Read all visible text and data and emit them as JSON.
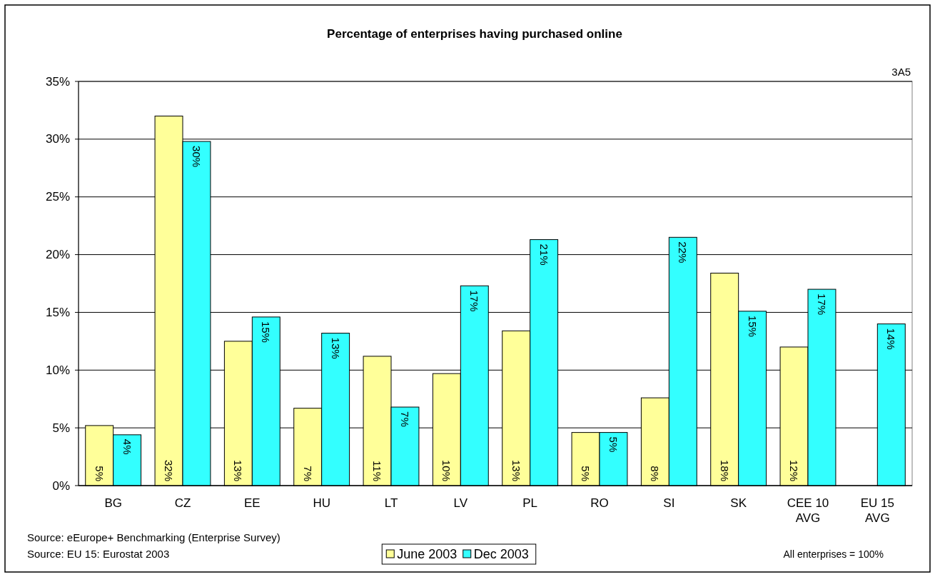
{
  "chart_data": {
    "type": "bar",
    "title": "Percentage of enterprises having purchased online",
    "categories": [
      "BG",
      "CZ",
      "EE",
      "HU",
      "LT",
      "LV",
      "PL",
      "RO",
      "SI",
      "SK",
      "CEE 10 AVG",
      "EU 15 AVG"
    ],
    "series": [
      {
        "name": "June 2003",
        "color": "#ffff99",
        "values": [
          5.2,
          32.0,
          12.5,
          6.7,
          11.2,
          9.7,
          13.4,
          4.6,
          7.6,
          18.4,
          12.0,
          null
        ],
        "value_labels": [
          "5%",
          "32%",
          "13%",
          "7%",
          "11%",
          "10%",
          "13%",
          "5%",
          "8%",
          "18%",
          "12%",
          null
        ]
      },
      {
        "name": "Dec 2003",
        "color": "#33ffff",
        "values": [
          4.4,
          29.8,
          14.6,
          13.2,
          6.8,
          17.3,
          21.3,
          4.6,
          21.5,
          15.1,
          17.0,
          14.0
        ],
        "value_labels": [
          "4%",
          "30%",
          "15%",
          "13%",
          "7%",
          "17%",
          "21%",
          "5%",
          "22%",
          "15%",
          "17%",
          "14%"
        ]
      }
    ],
    "ylim": [
      0,
      35
    ],
    "yticks": [
      {
        "value": 0,
        "label": "0%"
      },
      {
        "value": 5,
        "label": "5%"
      },
      {
        "value": 10,
        "label": "10%"
      },
      {
        "value": 15,
        "label": "15%"
      },
      {
        "value": 20,
        "label": "20%"
      },
      {
        "value": 25,
        "label": "25%"
      },
      {
        "value": 30,
        "label": "30%"
      },
      {
        "value": 35,
        "label": "35%"
      }
    ],
    "grid": "y",
    "legend": "bottom",
    "annotations": [
      "3A5",
      "Source: eEurope+ Benchmarking (Enterprise Survey)",
      "Source: EU 15: Eurostat 2003",
      "All enterprises = 100%"
    ]
  }
}
